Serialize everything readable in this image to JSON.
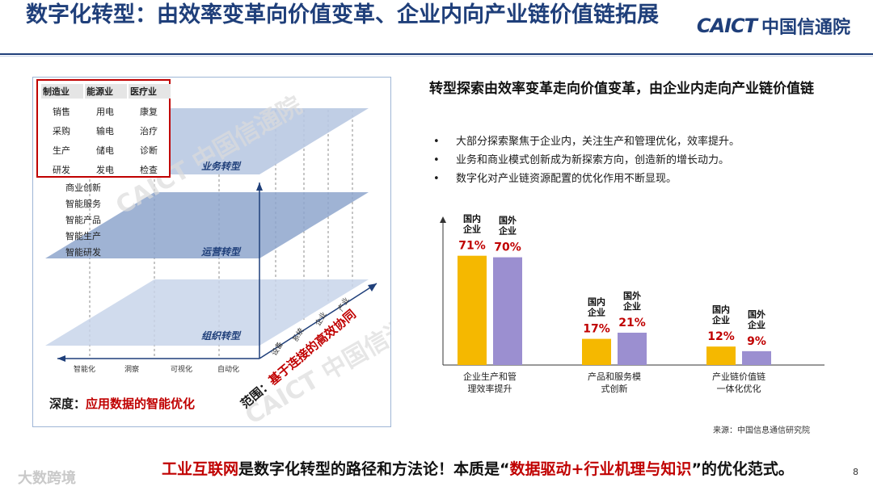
{
  "header": {
    "title": "数字化转型：由效率变革向价值变革、企业内向产业链价值链拓展",
    "logo_en": "CAICT",
    "logo_cn": "中国信通院"
  },
  "diagram": {
    "industries": [
      {
        "name": "制造业",
        "items": [
          "销售",
          "采购",
          "生产",
          "研发"
        ]
      },
      {
        "name": "能源业",
        "items": [
          "用电",
          "输电",
          "储电",
          "发电"
        ]
      },
      {
        "name": "医疗业",
        "items": [
          "康复",
          "治疗",
          "诊断",
          "检查"
        ]
      }
    ],
    "functions": [
      "商业创新",
      "智能服务",
      "智能产品",
      "智能生产",
      "智能研发"
    ],
    "layers": [
      "业务转型",
      "运营转型",
      "组织转型"
    ],
    "x_axis": [
      "智能化",
      "洞察",
      "可视化",
      "自动化"
    ],
    "diag_axis": [
      "设备",
      "系统",
      "企业",
      "产业"
    ],
    "depth_label": "深度：",
    "depth_value": "应用数据的智能优化",
    "scope_label": "范围：",
    "scope_value": "基于连接的高效协同",
    "watermark": "CAICT 中国信通院"
  },
  "right": {
    "subheading": "转型探索由效率变革走向价值变革，由企业内走向产业链价值链",
    "bullets": [
      "大部分探索聚焦于企业内，关注生产和管理优化，效率提升。",
      "业务和商业模式创新成为新探索方向，创造新的增长动力。",
      "数字化对产业链资源配置的优化作用不断显现。"
    ],
    "source": "来源：中国信息通信研究院"
  },
  "chart_data": {
    "type": "bar",
    "categories": [
      "企业生产和管理效率提升",
      "产品和服务模式创新",
      "产业链价值链一体化优化"
    ],
    "category_lines": [
      [
        "企业生产和管",
        "理效率提升"
      ],
      [
        "产品和服务模",
        "式创新"
      ],
      [
        "产业链价值链",
        "一体化优化"
      ]
    ],
    "series": [
      {
        "name": "国内企业",
        "values": [
          71,
          17,
          12
        ],
        "color": "#f5b800"
      },
      {
        "name": "国外企业",
        "values": [
          70,
          21,
          9
        ],
        "color": "#9b8fd0"
      }
    ],
    "series_label_lines": [
      [
        "国内",
        "企业"
      ],
      [
        "国外",
        "企业"
      ]
    ],
    "value_suffix": "%",
    "value_color": "#c00000",
    "ylim": [
      0,
      85
    ]
  },
  "footer": {
    "part1": "工业互联网",
    "part2": "是数字化转型的路径和方法论！本质是“",
    "part3": "数据驱动+行业机理与知识",
    "part4": "”的优化范式。",
    "page_number": "8",
    "watermark": "大数跨境"
  }
}
